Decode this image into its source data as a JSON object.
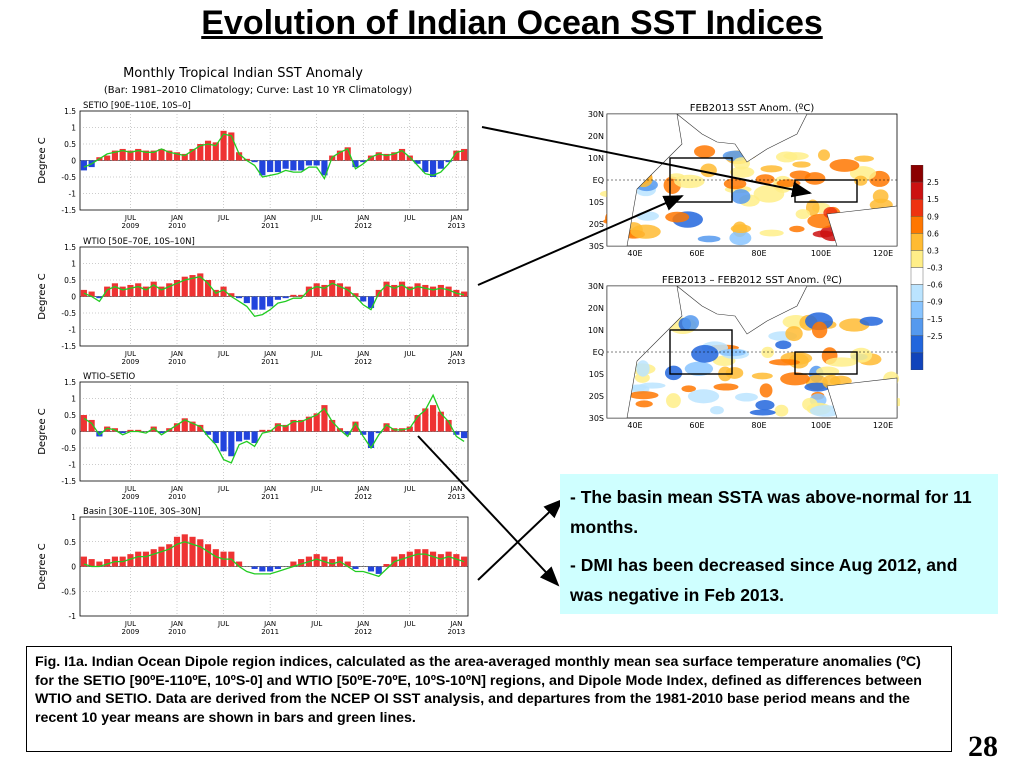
{
  "slide": {
    "title": "Evolution of Indian Ocean SST Indices",
    "page_number": "28"
  },
  "notes": [
    {
      "dash": "- ",
      "text": "The basin mean SSTA was above-normal for 11 months."
    },
    {
      "dash": "- ",
      "text": "DMI has been decreased since Aug 2012, and was negative in Feb 2013."
    }
  ],
  "caption": "Fig. I1a. Indian Ocean Dipole region indices, calculated as the area-averaged monthly mean sea surface temperature anomalies (ºC) for the SETIO [90ºE-110ºE, 10ºS-0] and WTIO [50ºE-70ºE, 10ºS-10ºN] regions, and Dipole Mode Index, defined as differences between WTIO and SETIO. Data are derived from the NCEP OI SST analysis, and departures from the 1981-2010 base period means and the recent 10 year means are shown in bars and green lines.",
  "colors": {
    "bar_positive": "#ee3333",
    "bar_negative": "#2244dd",
    "curve": "#22cc22",
    "note_bg": "#cfffff"
  },
  "chart_data": [
    {
      "type": "bar",
      "panel_title": "Monthly Tropical Indian SST Anomaly",
      "panel_subtitle": "(Bar: 1981–2010 Climatology; Curve: Last 10 YR Climatology)",
      "title": "SETIO [90E–110E, 10S–0]",
      "ylabel": "Degree C",
      "ylim": [
        -1.5,
        1.5
      ],
      "yticks": [
        -1.5,
        -1,
        -0.5,
        0,
        0.5,
        1,
        1.5
      ],
      "xticks": [
        [
          "JUL",
          "2009"
        ],
        [
          "JAN",
          "2010"
        ],
        [
          "JUL",
          ""
        ],
        [
          "JAN",
          "2011"
        ],
        [
          "JUL",
          ""
        ],
        [
          "JAN",
          "2012"
        ],
        [
          "JUL",
          ""
        ],
        [
          "JAN",
          "2013"
        ]
      ],
      "x_start": "2009-01",
      "months": 50,
      "series": [
        {
          "name": "Bar: 1981–2010 Climatology",
          "values": [
            -0.3,
            -0.2,
            0.1,
            0.15,
            0.3,
            0.35,
            0.3,
            0.35,
            0.3,
            0.3,
            0.35,
            0.3,
            0.25,
            0.2,
            0.35,
            0.5,
            0.6,
            0.55,
            0.9,
            0.85,
            0.25,
            0.05,
            -0.05,
            -0.45,
            -0.35,
            -0.35,
            -0.25,
            -0.3,
            -0.3,
            -0.15,
            -0.15,
            -0.45,
            0.15,
            0.3,
            0.4,
            -0.2,
            -0.05,
            0.15,
            0.25,
            0.2,
            0.25,
            0.35,
            0.15,
            -0.1,
            -0.35,
            -0.5,
            -0.25,
            -0.05,
            0.3,
            0.35
          ]
        },
        {
          "name": "Curve: Last 10 YR Climatology",
          "values": [
            -0.2,
            -0.1,
            0.05,
            0.2,
            0.25,
            0.3,
            0.25,
            0.3,
            0.25,
            0.25,
            0.35,
            0.25,
            0.2,
            0.15,
            0.3,
            0.45,
            0.5,
            0.45,
            0.8,
            0.75,
            0.2,
            0.0,
            -0.15,
            -0.5,
            -0.45,
            -0.4,
            -0.3,
            -0.35,
            -0.35,
            -0.2,
            -0.2,
            -0.55,
            0.1,
            0.25,
            0.35,
            -0.25,
            -0.1,
            0.1,
            0.2,
            0.15,
            0.2,
            0.3,
            0.1,
            -0.15,
            -0.4,
            -0.45,
            -0.35,
            -0.1,
            0.25,
            0.3
          ]
        }
      ]
    },
    {
      "type": "bar",
      "title": "WTIO [50E–70E, 10S–10N]",
      "ylabel": "Degree C",
      "ylim": [
        -1.5,
        1.5
      ],
      "yticks": [
        -1.5,
        -1,
        -0.5,
        0,
        0.5,
        1,
        1.5
      ],
      "xticks": [
        [
          "JUL",
          "2009"
        ],
        [
          "JAN",
          "2010"
        ],
        [
          "JUL",
          ""
        ],
        [
          "JAN",
          "2011"
        ],
        [
          "JUL",
          ""
        ],
        [
          "JAN",
          "2012"
        ],
        [
          "JUL",
          ""
        ],
        [
          "JAN",
          "2013"
        ]
      ],
      "x_start": "2009-01",
      "months": 50,
      "series": [
        {
          "name": "Bar: 1981–2010 Climatology",
          "values": [
            0.2,
            0.15,
            -0.05,
            0.3,
            0.4,
            0.3,
            0.35,
            0.4,
            0.3,
            0.45,
            0.3,
            0.4,
            0.5,
            0.6,
            0.65,
            0.7,
            0.5,
            0.2,
            0.3,
            0.1,
            -0.05,
            -0.2,
            -0.4,
            -0.4,
            -0.3,
            -0.1,
            -0.05,
            0.05,
            0.05,
            0.3,
            0.4,
            0.35,
            0.5,
            0.4,
            0.3,
            0.1,
            -0.15,
            -0.35,
            0.2,
            0.45,
            0.35,
            0.45,
            0.3,
            0.4,
            0.35,
            0.3,
            0.35,
            0.3,
            0.2,
            0.15
          ]
        },
        {
          "name": "Curve: Last 10 YR Climatology",
          "values": [
            0.1,
            0.0,
            -0.15,
            0.2,
            0.3,
            0.2,
            0.25,
            0.3,
            0.2,
            0.35,
            0.2,
            0.3,
            0.4,
            0.5,
            0.55,
            0.6,
            0.4,
            0.1,
            0.2,
            0.0,
            -0.15,
            -0.3,
            -0.6,
            -0.55,
            -0.4,
            -0.2,
            -0.15,
            -0.05,
            -0.05,
            0.2,
            0.3,
            0.25,
            0.4,
            0.3,
            0.2,
            0.0,
            -0.25,
            -0.4,
            0.1,
            0.35,
            0.25,
            0.35,
            0.2,
            0.3,
            0.25,
            0.2,
            0.25,
            0.2,
            0.1,
            0.05
          ]
        }
      ]
    },
    {
      "type": "bar",
      "title": "WTIO–SETIO",
      "ylabel": "Degree C",
      "ylim": [
        -1.5,
        1.5
      ],
      "yticks": [
        -1.5,
        -1,
        -0.5,
        0,
        0.5,
        1,
        1.5
      ],
      "xticks": [
        [
          "JUL",
          "2009"
        ],
        [
          "JAN",
          "2010"
        ],
        [
          "JUL",
          ""
        ],
        [
          "JAN",
          "2011"
        ],
        [
          "JUL",
          ""
        ],
        [
          "JAN",
          "2012"
        ],
        [
          "JUL",
          ""
        ],
        [
          "JAN",
          "2013"
        ]
      ],
      "x_start": "2009-01",
      "months": 50,
      "series": [
        {
          "name": "Bar: 1981–2010 Climatology",
          "values": [
            0.5,
            0.35,
            -0.15,
            0.15,
            0.1,
            -0.05,
            0.05,
            0.05,
            0.0,
            0.15,
            -0.05,
            0.1,
            0.25,
            0.4,
            0.3,
            0.2,
            -0.1,
            -0.35,
            -0.6,
            -0.75,
            -0.3,
            -0.25,
            -0.35,
            0.05,
            0.05,
            0.25,
            0.2,
            0.35,
            0.35,
            0.45,
            0.55,
            0.8,
            0.35,
            0.1,
            -0.1,
            0.3,
            -0.1,
            -0.5,
            -0.05,
            0.25,
            0.1,
            0.1,
            0.15,
            0.5,
            0.7,
            0.8,
            0.6,
            0.35,
            -0.1,
            -0.2
          ]
        },
        {
          "name": "Curve: Last 10 YR Climatology",
          "values": [
            0.4,
            0.25,
            -0.1,
            0.1,
            0.05,
            -0.1,
            0.0,
            0.0,
            -0.05,
            0.1,
            -0.1,
            0.05,
            0.2,
            0.35,
            0.25,
            0.15,
            -0.15,
            -0.4,
            -0.85,
            -0.95,
            -0.4,
            -0.3,
            -0.45,
            -0.05,
            0.0,
            0.2,
            0.15,
            0.3,
            0.3,
            0.4,
            0.5,
            0.7,
            0.3,
            0.05,
            -0.15,
            0.25,
            -0.15,
            -0.5,
            -0.1,
            0.2,
            0.05,
            0.05,
            0.1,
            0.45,
            0.65,
            1.1,
            0.55,
            0.3,
            -0.15,
            -0.3
          ]
        }
      ]
    },
    {
      "type": "bar",
      "title": "Basin [30E–110E, 30S–30N]",
      "ylabel": "Degree C",
      "ylim": [
        -1,
        1
      ],
      "yticks": [
        -1,
        -0.5,
        0,
        0.5,
        1
      ],
      "xticks": [
        [
          "JUL",
          "2009"
        ],
        [
          "JAN",
          "2010"
        ],
        [
          "JUL",
          ""
        ],
        [
          "JAN",
          "2011"
        ],
        [
          "JUL",
          ""
        ],
        [
          "JAN",
          "2012"
        ],
        [
          "JUL",
          ""
        ],
        [
          "JAN",
          "2013"
        ]
      ],
      "x_start": "2009-01",
      "months": 50,
      "series": [
        {
          "name": "Bar: 1981–2010 Climatology",
          "values": [
            0.2,
            0.15,
            0.1,
            0.15,
            0.2,
            0.2,
            0.25,
            0.3,
            0.3,
            0.35,
            0.4,
            0.45,
            0.6,
            0.65,
            0.6,
            0.55,
            0.45,
            0.35,
            0.3,
            0.3,
            0.1,
            0.0,
            -0.05,
            -0.1,
            -0.1,
            -0.05,
            0.0,
            0.1,
            0.15,
            0.2,
            0.25,
            0.2,
            0.15,
            0.2,
            0.1,
            -0.05,
            0.0,
            -0.1,
            -0.15,
            0.05,
            0.2,
            0.25,
            0.3,
            0.35,
            0.35,
            0.3,
            0.25,
            0.3,
            0.25,
            0.2
          ]
        },
        {
          "name": "Curve: Last 10 YR Climatology",
          "values": [
            0.05,
            0.0,
            0.0,
            0.05,
            0.1,
            0.1,
            0.15,
            0.2,
            0.2,
            0.25,
            0.3,
            0.35,
            0.45,
            0.5,
            0.45,
            0.4,
            0.3,
            0.2,
            0.15,
            0.15,
            0.0,
            -0.1,
            -0.15,
            -0.15,
            -0.15,
            -0.1,
            -0.05,
            0.0,
            0.05,
            0.1,
            0.15,
            0.1,
            0.05,
            0.1,
            0.0,
            -0.1,
            -0.1,
            -0.15,
            -0.2,
            -0.05,
            0.1,
            0.15,
            0.2,
            0.25,
            0.25,
            0.2,
            0.15,
            0.2,
            0.15,
            0.1
          ]
        }
      ]
    }
  ],
  "maps": [
    {
      "title": "FEB2013 SST Anom. (ºC)",
      "lat_labels": [
        "30N",
        "20N",
        "10N",
        "EQ",
        "10S",
        "20S",
        "30S"
      ],
      "lon_labels": [
        "40E",
        "60E",
        "80E",
        "100E",
        "120E"
      ]
    },
    {
      "title": "FEB2013 – FEB2012 SST Anom. (ºC)",
      "lat_labels": [
        "30N",
        "20N",
        "10N",
        "EQ",
        "10S",
        "20S",
        "30S"
      ],
      "lon_labels": [
        "40E",
        "60E",
        "80E",
        "100E",
        "120E"
      ]
    }
  ],
  "colorbar": {
    "labels": [
      "2.5",
      "1.5",
      "0.9",
      "0.6",
      "0.3",
      "–0.3",
      "–0.6",
      "–0.9",
      "–1.5",
      "–2.5"
    ],
    "colors": [
      "#8b0000",
      "#cc1111",
      "#ee3311",
      "#ff7700",
      "#ffbb33",
      "#ffee88",
      "#ffffff",
      "#bbe4ff",
      "#88c4ff",
      "#5599ee",
      "#2266dd",
      "#1144bb"
    ]
  }
}
